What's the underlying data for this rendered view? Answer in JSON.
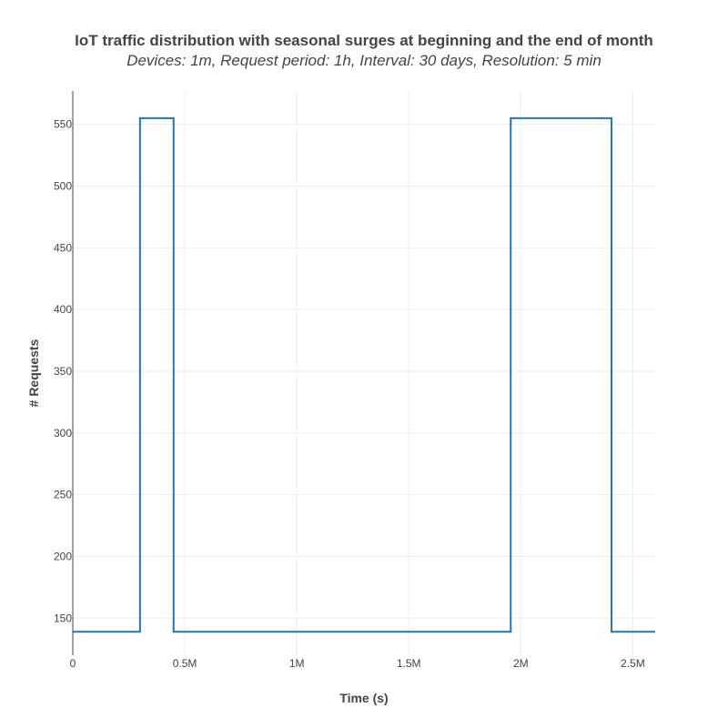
{
  "chart_data": {
    "type": "line",
    "line_shape": "step",
    "title": "IoT traffic distribution with seasonal surges at beginning and the end of month",
    "subtitle": "Devices: 1m, Request period: 1h, Interval: 30 days, Resolution: 5 min",
    "xlabel": "Time (s)",
    "ylabel": "# Requests",
    "xlim": [
      0,
      2600000
    ],
    "ylim": [
      120,
      577
    ],
    "x_ticks": [
      {
        "value": 0,
        "label": "0"
      },
      {
        "value": 500000,
        "label": "0.5M"
      },
      {
        "value": 1000000,
        "label": "1M"
      },
      {
        "value": 1500000,
        "label": "1.5M"
      },
      {
        "value": 2000000,
        "label": "2M"
      },
      {
        "value": 2500000,
        "label": "2.5M"
      }
    ],
    "y_ticks": [
      {
        "value": 150,
        "label": "150"
      },
      {
        "value": 200,
        "label": "200"
      },
      {
        "value": 250,
        "label": "250"
      },
      {
        "value": 300,
        "label": "300"
      },
      {
        "value": 350,
        "label": "350"
      },
      {
        "value": 400,
        "label": "400"
      },
      {
        "value": 450,
        "label": "450"
      },
      {
        "value": 500,
        "label": "500"
      },
      {
        "value": 550,
        "label": "550"
      }
    ],
    "grid": true,
    "legend": "none",
    "line_color": "#1f77b4",
    "series": [
      {
        "x": [
          0,
          300000,
          450000,
          1955000,
          2405000,
          2600000
        ],
        "y": [
          139,
          555,
          139,
          555,
          139,
          139
        ]
      }
    ]
  }
}
